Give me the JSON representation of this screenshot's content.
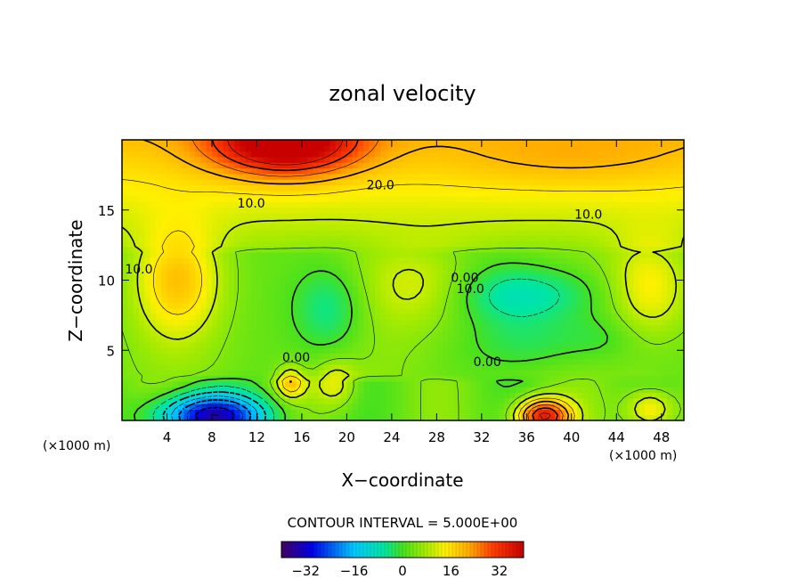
{
  "chart_data": {
    "type": "heatmap",
    "title": "zonal velocity",
    "xlabel": "X−coordinate",
    "ylabel": "Z−coordinate",
    "x_unit": "(×1000 m)",
    "z_unit": "(×1000 m)",
    "xlim": [
      0,
      50
    ],
    "ylim": [
      0,
      20
    ],
    "x_ticks": [
      "4",
      "8",
      "12",
      "16",
      "20",
      "24",
      "28",
      "32",
      "36",
      "40",
      "44",
      "48"
    ],
    "x_tick_values": [
      4,
      8,
      12,
      16,
      20,
      24,
      28,
      32,
      36,
      40,
      44,
      48
    ],
    "y_ticks": [
      "5",
      "10",
      "15"
    ],
    "y_tick_values": [
      5,
      10,
      15
    ],
    "contour_interval_text": "CONTOUR INTERVAL = 5.000E+00",
    "colorbar": {
      "min": -40,
      "max": 40,
      "tick_labels": [
        "−32",
        "−16",
        "0",
        "16",
        "32"
      ],
      "tick_values": [
        -32,
        -16,
        0,
        16,
        32
      ]
    },
    "contour_labels": [
      {
        "text": "20.0",
        "x": 23,
        "z": 16.8
      },
      {
        "text": "10.0",
        "x": 11.5,
        "z": 15.5
      },
      {
        "text": "10.0",
        "x": 41.5,
        "z": 14.7
      },
      {
        "text": "10.0",
        "x": 1.5,
        "z": 10.8
      },
      {
        "text": "0.00",
        "x": 30.5,
        "z": 10.2
      },
      {
        "text": "10.0",
        "x": 31,
        "z": 9.4
      },
      {
        "text": "0.00",
        "x": 15.5,
        "z": 4.5
      },
      {
        "text": "0.00",
        "x": 32.5,
        "z": 4.2
      }
    ],
    "features": [
      {
        "x": 14.5,
        "z": 19.8,
        "value": 30,
        "sx": 4.5,
        "sz": 1.6
      },
      {
        "x": 40,
        "z": 18.5,
        "value": 4,
        "sx": 8,
        "sz": 1.5
      },
      {
        "x": 5,
        "z": 10,
        "value": 14,
        "sx": 2.6,
        "sz": 2.8
      },
      {
        "x": 15,
        "z": 2.7,
        "value": 15,
        "sx": 0.9,
        "sz": 0.8
      },
      {
        "x": 19,
        "z": 2.6,
        "value": 10,
        "sx": 1.3,
        "sz": 1.1
      },
      {
        "x": 27,
        "z": 9.5,
        "value": 8,
        "sx": 3.5,
        "sz": 2
      },
      {
        "x": 47,
        "z": 9.5,
        "value": 12,
        "sx": 2.5,
        "sz": 2.5
      },
      {
        "x": 36,
        "z": 9,
        "value": -12,
        "sx": 5,
        "sz": 1.5
      },
      {
        "x": 18.5,
        "z": 8,
        "value": -9,
        "sx": 2.2,
        "sz": 2.2
      },
      {
        "x": 37,
        "z": 5.5,
        "value": -6,
        "sx": 4,
        "sz": 1.4
      },
      {
        "x": 8,
        "z": 0.3,
        "value": -36,
        "sx": 3.4,
        "sz": 1.1
      },
      {
        "x": 37.5,
        "z": 0.3,
        "value": 34,
        "sx": 1.7,
        "sz": 0.9
      },
      {
        "x": 47,
        "z": 0.8,
        "value": 14,
        "sx": 1.5,
        "sz": 1
      },
      {
        "x": 43,
        "z": 6,
        "value": -4,
        "sx": 2.5,
        "sz": 1.2
      }
    ]
  }
}
